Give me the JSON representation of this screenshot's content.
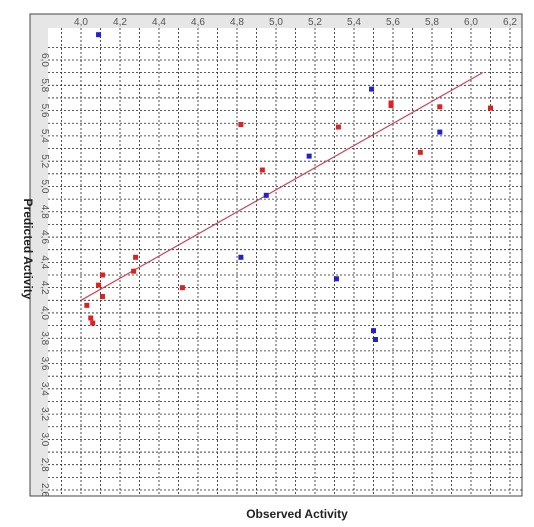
{
  "chart_data": {
    "type": "scatter",
    "title": "",
    "xlabel": "Observed Activity",
    "ylabel": "Predicted Activity",
    "xlim": [
      3.9,
      6.3
    ],
    "ylim": [
      2.55,
      6.2
    ],
    "x_ticks": [
      "4,0",
      "4,2",
      "4,4",
      "4,6",
      "4,8",
      "5,0",
      "5,2",
      "5,4",
      "5,6",
      "5,8",
      "6,0",
      "6,2"
    ],
    "x_tick_values": [
      4.0,
      4.2,
      4.4,
      4.6,
      4.8,
      5.0,
      5.2,
      5.4,
      5.6,
      5.8,
      6.0,
      6.2
    ],
    "y_ticks": [
      "2,6",
      "2,8",
      "3,0",
      "3,2",
      "3,4",
      "3,6",
      "3,8",
      "4,0",
      "4,2",
      "4,4",
      "4,6",
      "4,8",
      "5,0",
      "5,2",
      "5,4",
      "5,6",
      "5,8",
      "6,0"
    ],
    "y_tick_values": [
      2.6,
      2.8,
      3.0,
      3.2,
      3.4,
      3.6,
      3.8,
      4.0,
      4.2,
      4.4,
      4.6,
      4.8,
      5.0,
      5.2,
      5.4,
      5.6,
      5.8,
      6.0
    ],
    "grid": true,
    "series": [
      {
        "color": "#dd2222",
        "points": [
          [
            4.03,
            4.06
          ],
          [
            4.05,
            3.96
          ],
          [
            4.06,
            3.92
          ],
          [
            4.09,
            4.22
          ],
          [
            4.11,
            4.3
          ],
          [
            4.11,
            4.13
          ],
          [
            4.27,
            4.33
          ],
          [
            4.28,
            4.44
          ],
          [
            4.52,
            4.2
          ],
          [
            4.82,
            5.49
          ],
          [
            4.93,
            5.13
          ],
          [
            5.32,
            5.47
          ],
          [
            5.59,
            5.66
          ],
          [
            5.59,
            5.64
          ],
          [
            5.74,
            5.27
          ],
          [
            5.84,
            5.63
          ],
          [
            6.1,
            5.62
          ]
        ]
      },
      {
        "color": "#2222cc",
        "points": [
          [
            4.09,
            6.2
          ],
          [
            4.82,
            4.44
          ],
          [
            4.95,
            4.93
          ],
          [
            5.17,
            5.24
          ],
          [
            5.31,
            4.27
          ],
          [
            5.49,
            5.77
          ],
          [
            5.5,
            3.86
          ],
          [
            5.51,
            3.79
          ],
          [
            5.84,
            5.43
          ]
        ]
      }
    ],
    "regression_line": {
      "color": "#cc4455",
      "from": [
        4.0,
        4.1
      ],
      "to": [
        6.06,
        5.9
      ]
    }
  }
}
